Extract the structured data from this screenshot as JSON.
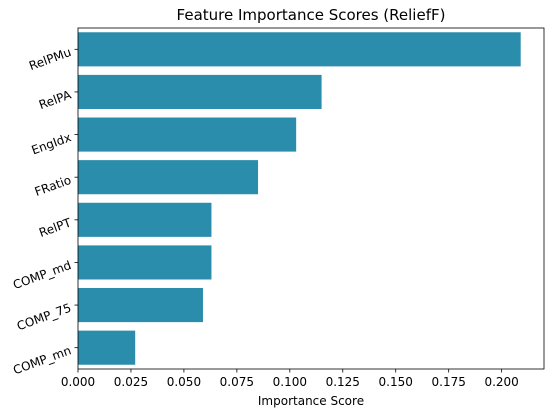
{
  "chart_data": {
    "type": "bar",
    "orientation": "horizontal",
    "title": "Feature Importance Scores (ReliefF)",
    "xlabel": "Importance Score",
    "ylabel": "",
    "categories": [
      "RelPMu",
      "RelPA",
      "EngIdx",
      "FRatio",
      "RelPT",
      "COMP_md",
      "COMP_75",
      "COMP_mn"
    ],
    "values": [
      0.209,
      0.115,
      0.103,
      0.085,
      0.063,
      0.063,
      0.059,
      0.027
    ],
    "xlim": [
      0.0,
      0.22
    ],
    "xticks": [
      "0.000",
      "0.025",
      "0.050",
      "0.075",
      "0.100",
      "0.125",
      "0.150",
      "0.175",
      "0.200"
    ],
    "bar_color": "#2a8dab",
    "grid": false,
    "legend": "none"
  }
}
